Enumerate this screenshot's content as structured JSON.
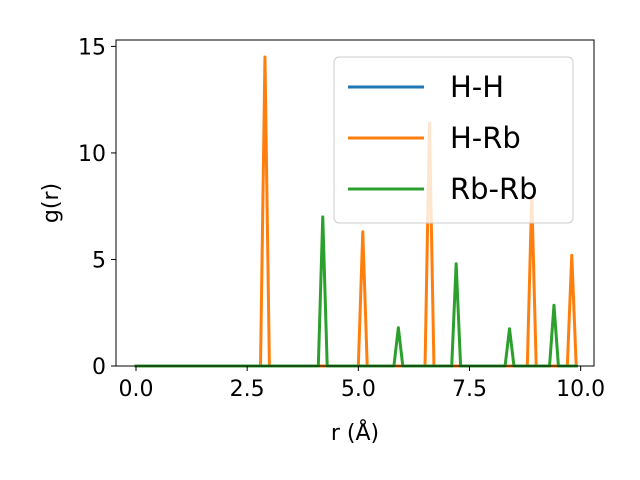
{
  "chart_data": {
    "type": "line",
    "xlabel": "r (Å)",
    "ylabel": "g(r)",
    "xlim": [
      -0.45,
      10.3
    ],
    "ylim": [
      0,
      15.3
    ],
    "xticks": [
      0.0,
      2.5,
      5.0,
      7.5,
      10.0
    ],
    "xtick_labels": [
      "0.0",
      "2.5",
      "5.0",
      "7.5",
      "10.0"
    ],
    "yticks": [
      0,
      5,
      10,
      15
    ],
    "ytick_labels": [
      "0",
      "5",
      "10",
      "15"
    ],
    "grid": false,
    "legend_position": "top-right",
    "series": [
      {
        "name": "H-H",
        "color": "#1f77b4",
        "x": [
          0.0,
          9.9
        ],
        "y": [
          0,
          0
        ]
      },
      {
        "name": "H-Rb",
        "color": "#ff7f0e",
        "x": [
          0.0,
          2.8,
          2.9,
          3.0,
          5.0,
          5.1,
          5.2,
          6.5,
          6.6,
          6.7,
          8.8,
          8.9,
          9.0,
          9.7,
          9.8,
          9.9
        ],
        "y": [
          0,
          0,
          14.5,
          0,
          0,
          6.3,
          0,
          0,
          11.4,
          0,
          0,
          8.0,
          0,
          0,
          5.2,
          0
        ]
      },
      {
        "name": "Rb-Rb",
        "color": "#2ca02c",
        "x": [
          0.0,
          4.1,
          4.2,
          4.3,
          5.8,
          5.9,
          6.0,
          7.1,
          7.2,
          7.3,
          8.3,
          8.4,
          8.5,
          9.3,
          9.4,
          9.5,
          9.9
        ],
        "y": [
          0,
          0,
          7.0,
          0,
          0,
          1.8,
          0,
          0,
          4.8,
          0,
          0,
          1.75,
          0,
          0,
          2.85,
          0,
          0
        ]
      }
    ]
  }
}
